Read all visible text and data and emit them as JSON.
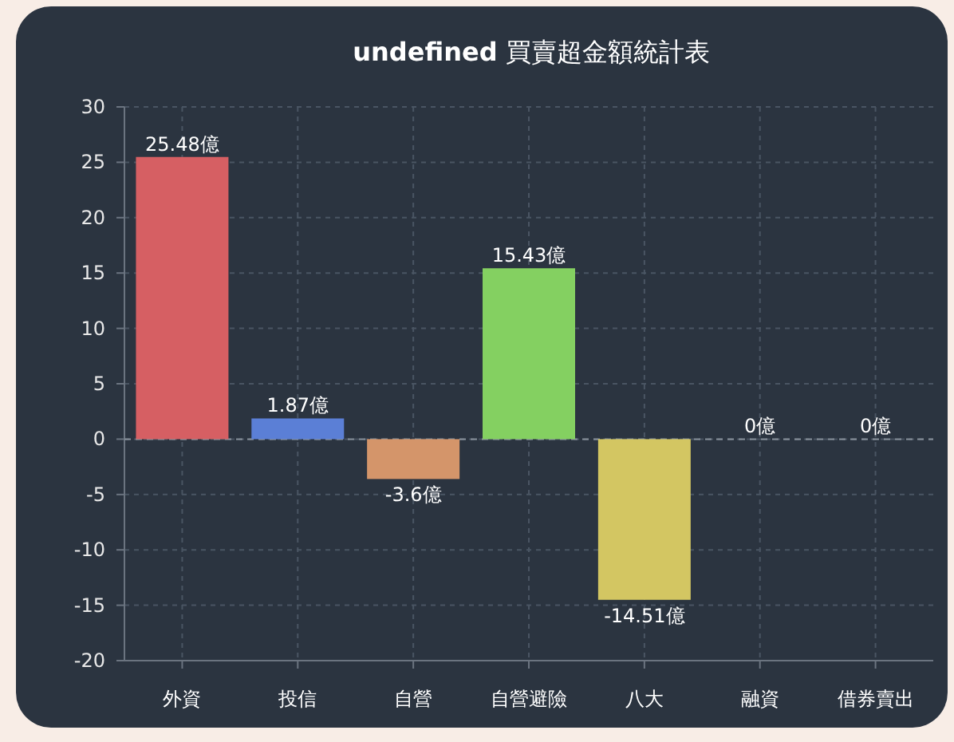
{
  "chart_data": {
    "type": "bar",
    "title": "**undefined** 買賣超金額統計表",
    "categories": [
      "外資",
      "投信",
      "自營",
      "自營避險",
      "八大",
      "融資",
      "借券賣出"
    ],
    "values": [
      25.48,
      1.87,
      -3.6,
      15.43,
      -14.51,
      0,
      0
    ],
    "colors": [
      "#d65f63",
      "#5b7fd6",
      "#d4956a",
      "#84d061",
      "#d3c662",
      "#d06fc0",
      "#6fc6d0"
    ],
    "value_labels": [
      "25.48億",
      "1.87億",
      "-3.6億",
      "15.43億",
      "-14.51億",
      "0億",
      "0億"
    ],
    "ylim": [
      -20,
      30
    ],
    "yticks": [
      -20,
      -15,
      -10,
      -5,
      0,
      5,
      10,
      15,
      20,
      25,
      30
    ],
    "grid": true,
    "ref_lines": [
      {
        "axis": "y",
        "value": 0,
        "line_style": "dashed",
        "color": "#8a939e"
      }
    ]
  }
}
